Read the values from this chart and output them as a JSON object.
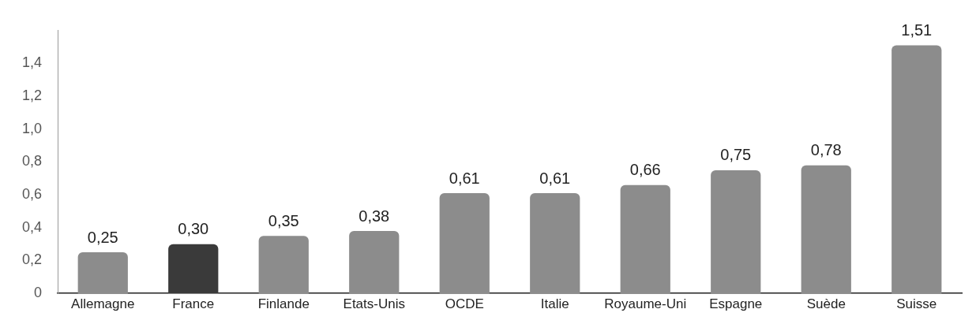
{
  "chart_data": {
    "type": "bar",
    "categories": [
      "Allemagne",
      "France",
      "Finlande",
      "Etats-Unis",
      "OCDE",
      "Italie",
      "Royaume-Uni",
      "Espagne",
      "Suède",
      "Suisse"
    ],
    "values": [
      0.25,
      0.3,
      0.35,
      0.38,
      0.61,
      0.61,
      0.66,
      0.75,
      0.78,
      1.51
    ],
    "colors": [
      "#8c8c8c",
      "#3a3a3a",
      "#8c8c8c",
      "#8c8c8c",
      "#8c8c8c",
      "#8c8c8c",
      "#8c8c8c",
      "#8c8c8c",
      "#8c8c8c",
      "#8c8c8c"
    ],
    "value_labels": [
      "0,25",
      "0,30",
      "0,35",
      "0,38",
      "0,61",
      "0,61",
      "0,66",
      "0,75",
      "0,78",
      "1,51"
    ],
    "ylim": [
      0,
      1.6
    ],
    "yticks": [
      {
        "value": 0,
        "label": "0"
      },
      {
        "value": 0.2,
        "label": "0,2"
      },
      {
        "value": 0.4,
        "label": "0,4"
      },
      {
        "value": 0.6,
        "label": "0,6"
      },
      {
        "value": 0.8,
        "label": "0,8"
      },
      {
        "value": 1.0,
        "label": "1,0"
      },
      {
        "value": 1.2,
        "label": "1,2"
      },
      {
        "value": 1.4,
        "label": "1,4"
      }
    ],
    "grid": false,
    "legend": false
  }
}
